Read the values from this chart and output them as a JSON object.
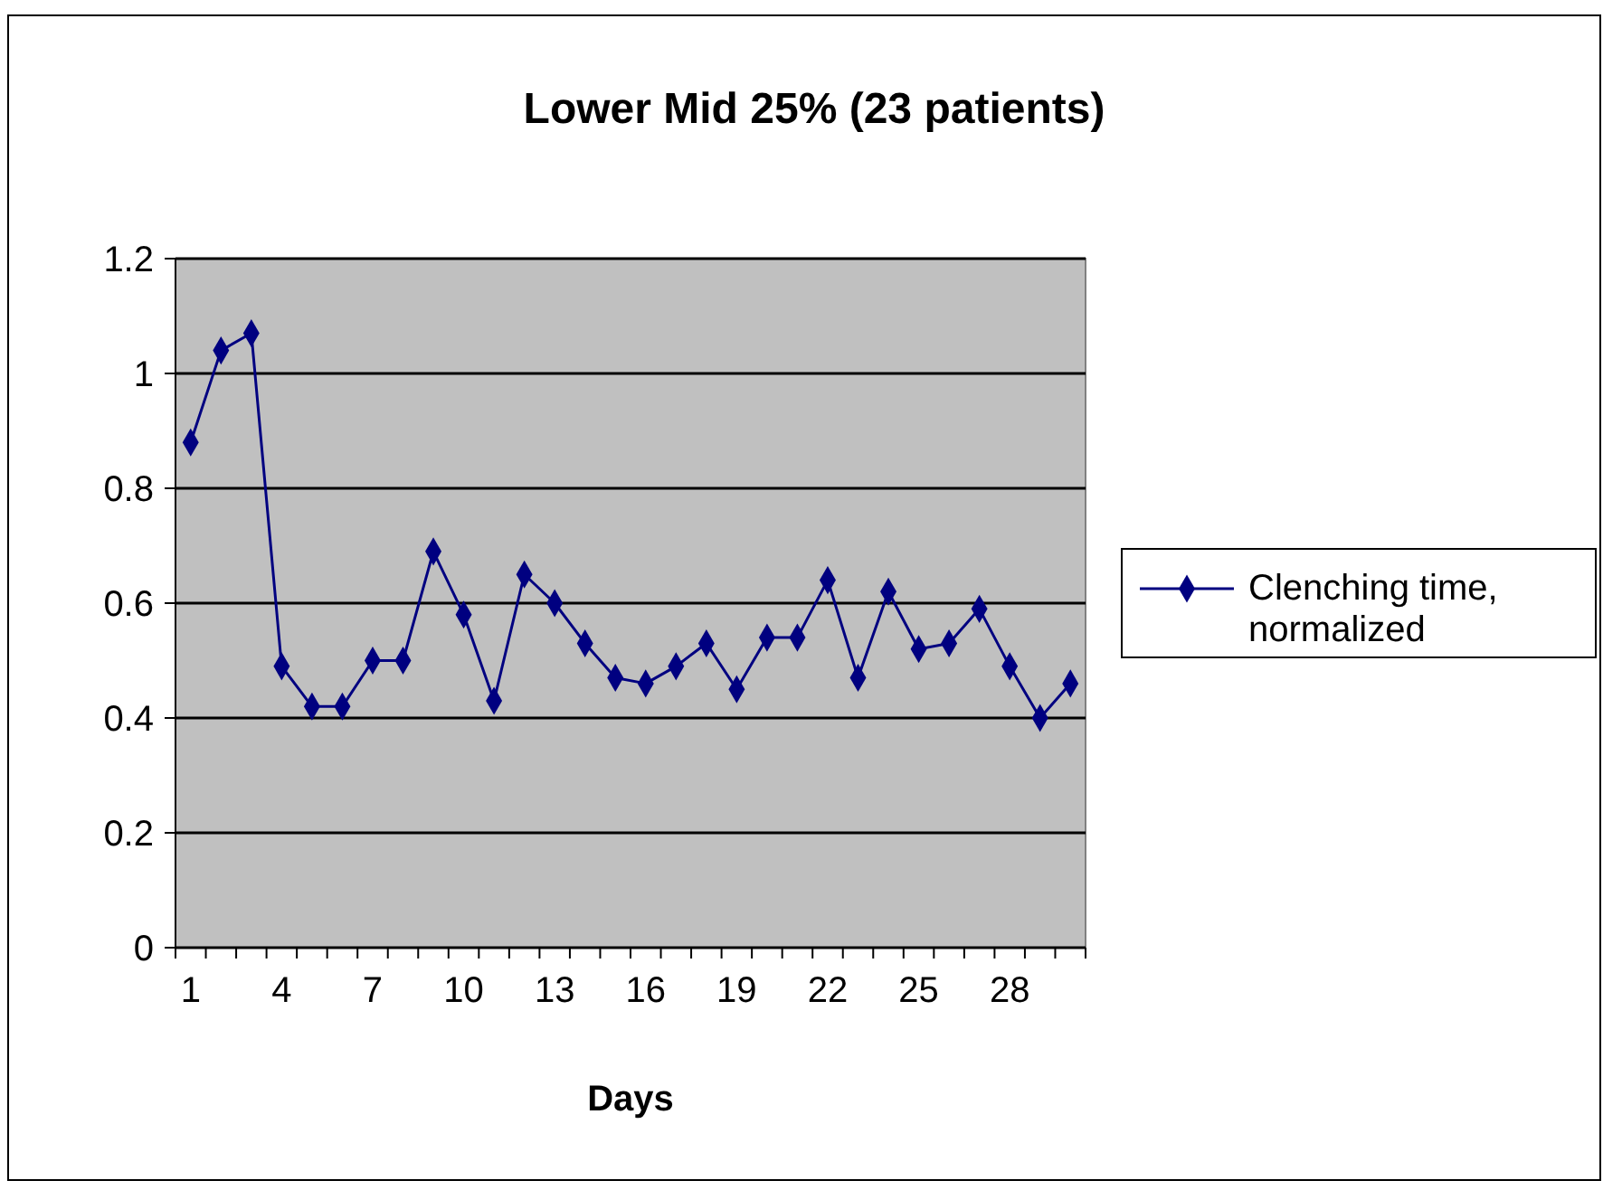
{
  "chart_data": {
    "type": "line",
    "title": "Lower Mid 25% (23 patients)",
    "xlabel": "Days",
    "categories": [
      "1",
      null,
      null,
      "4",
      null,
      null,
      "7",
      null,
      null,
      "10",
      null,
      null,
      "13",
      null,
      null,
      "16",
      null,
      null,
      "19",
      null,
      null,
      "22",
      null,
      null,
      "25",
      null,
      null,
      "28",
      null,
      null
    ],
    "series": [
      {
        "name": "Clenching time, normalized",
        "color": "#000080",
        "values": [
          0.88,
          1.04,
          1.07,
          0.49,
          0.42,
          0.42,
          0.5,
          0.5,
          0.69,
          0.58,
          0.43,
          0.65,
          0.6,
          0.53,
          0.47,
          0.46,
          0.49,
          0.53,
          0.45,
          0.54,
          0.54,
          0.64,
          0.47,
          0.62,
          0.52,
          0.53,
          0.59,
          0.49,
          0.4,
          0.46
        ]
      }
    ],
    "ylim": [
      0,
      1.2
    ],
    "yticks": [
      0,
      0.2,
      0.4,
      0.6,
      0.8,
      1,
      1.2
    ],
    "grid": "y",
    "legend": "right",
    "marker": "diamond",
    "line_style": "solid"
  }
}
